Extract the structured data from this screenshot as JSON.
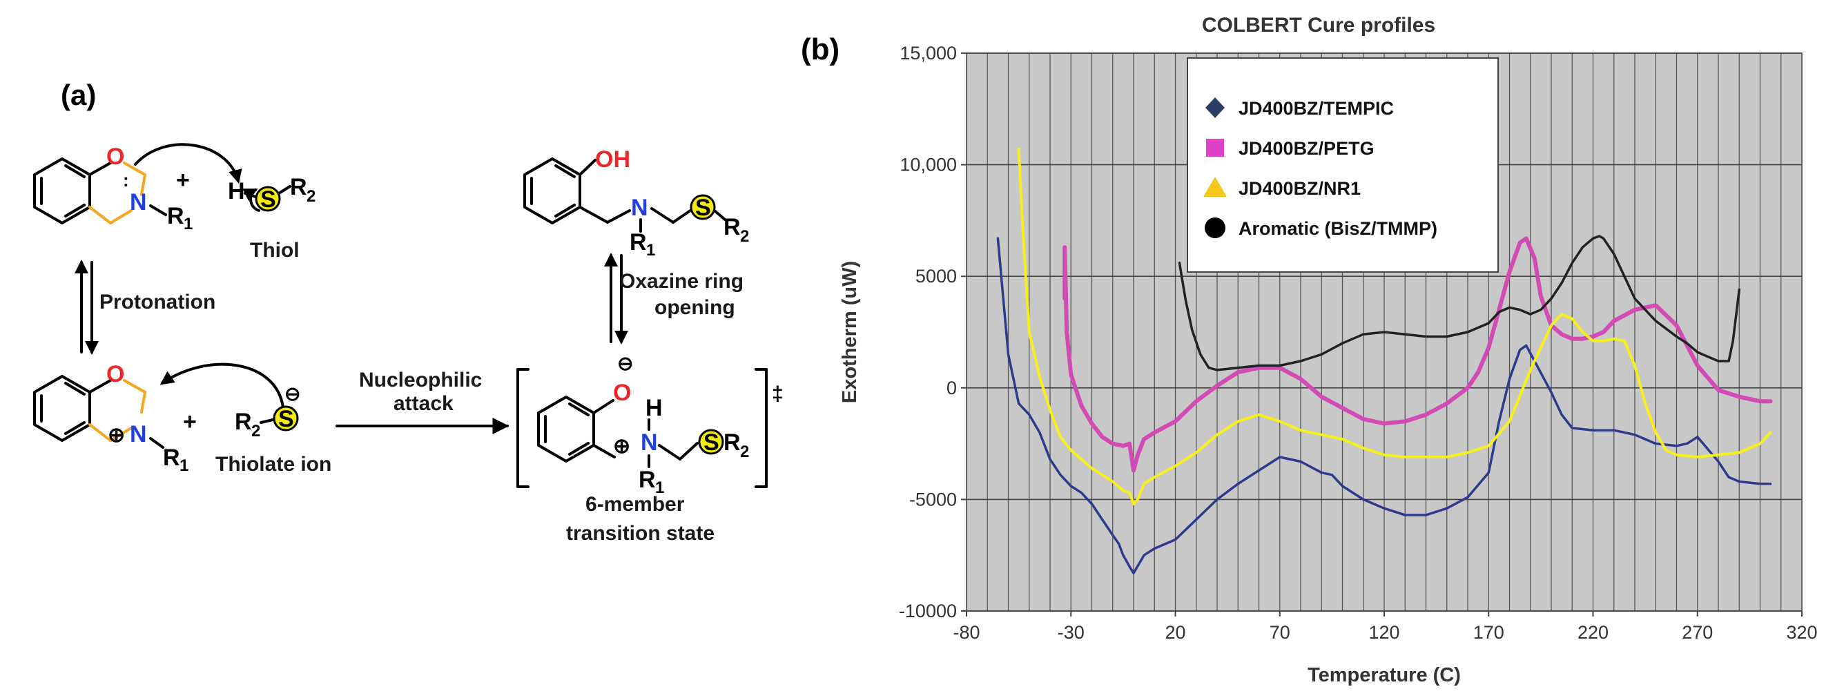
{
  "scheme": {
    "panel_label": "(a)",
    "atoms": {
      "O": "O",
      "N": "N",
      "S": "S",
      "H": "H",
      "OH": "OH",
      "R1": "R",
      "R2": "R",
      "one": "1",
      "two": "2",
      "plus": "+",
      "minus": "⊖",
      "cation": "⊕",
      "dagger": "‡"
    },
    "thiol_label": "Thiol",
    "protonation_label": "Protonation",
    "thiolate_label": "Thiolate ion",
    "nucleophilic_line1": "Nucleophilic",
    "nucleophilic_line2": "attack",
    "ring_open_line1": "Oxazine ring",
    "ring_open_line2": "opening",
    "ts_line1": "6-member",
    "ts_line2": "transition state"
  },
  "chart_panel_label": "(b)",
  "chart_data": {
    "type": "line",
    "title": "COLBERT Cure profiles",
    "xlabel": "Temperature (C)",
    "ylabel": "Exotherm (uW)",
    "xlim": [
      -80,
      320
    ],
    "ylim": [
      -10000,
      15000
    ],
    "xticks": [
      -80,
      -30,
      20,
      70,
      120,
      170,
      220,
      270,
      320
    ],
    "xtick_labels": [
      "-80",
      "-30",
      "20",
      "70",
      "120",
      "170",
      "220",
      "270",
      "320"
    ],
    "yticks": [
      -10000,
      -5000,
      0,
      5000,
      10000,
      15000
    ],
    "ytick_labels": [
      "-10000",
      "-5000",
      "0",
      "5000",
      "10,000",
      "15,000"
    ],
    "grid": true,
    "legend_position": "top-center",
    "series": [
      {
        "name": "JD400BZ/TEMPIC",
        "color": "#2e3a8c",
        "marker": "diamond",
        "marker_color": "#2c3e66",
        "x": [
          -65,
          -60,
          -55,
          -50,
          -45,
          -40,
          -35,
          -30,
          -25,
          -20,
          -15,
          -10,
          -7,
          -5,
          -2,
          0,
          5,
          10,
          20,
          30,
          40,
          50,
          60,
          70,
          80,
          90,
          95,
          100,
          110,
          120,
          130,
          140,
          150,
          160,
          170,
          175,
          180,
          185,
          188,
          192,
          200,
          205,
          210,
          220,
          230,
          240,
          250,
          260,
          265,
          270,
          280,
          285,
          290,
          300,
          305
        ],
        "y": [
          6700,
          1500,
          -700,
          -1200,
          -2000,
          -3200,
          -3900,
          -4400,
          -4700,
          -5200,
          -5900,
          -6600,
          -7000,
          -7500,
          -8000,
          -8300,
          -7500,
          -7200,
          -6800,
          -5900,
          -5000,
          -4300,
          -3700,
          -3100,
          -3300,
          -3800,
          -3900,
          -4400,
          -5000,
          -5400,
          -5700,
          -5700,
          -5400,
          -4900,
          -3800,
          -1500,
          400,
          1700,
          1900,
          1200,
          -200,
          -1200,
          -1800,
          -1900,
          -1900,
          -2100,
          -2500,
          -2600,
          -2500,
          -2200,
          -3300,
          -4000,
          -4200,
          -4300,
          -4300
        ]
      },
      {
        "name": "JD400BZ/PETG",
        "color": "#d24ab4",
        "marker": "square",
        "marker_color": "#e040c8",
        "x": [
          -33,
          -33,
          -32,
          -30,
          -25,
          -20,
          -15,
          -10,
          -5,
          -2,
          0,
          2,
          5,
          10,
          20,
          30,
          40,
          50,
          60,
          70,
          80,
          90,
          100,
          110,
          120,
          130,
          140,
          150,
          160,
          165,
          170,
          175,
          180,
          185,
          188,
          192,
          195,
          200,
          205,
          210,
          215,
          220,
          225,
          230,
          240,
          250,
          260,
          270,
          280,
          290,
          300,
          305
        ],
        "y": [
          4000,
          6300,
          2500,
          600,
          -800,
          -1600,
          -2200,
          -2500,
          -2600,
          -2500,
          -3700,
          -3000,
          -2300,
          -2000,
          -1500,
          -600,
          100,
          700,
          900,
          900,
          400,
          -400,
          -900,
          -1400,
          -1600,
          -1500,
          -1200,
          -700,
          0,
          700,
          1800,
          3500,
          5200,
          6500,
          6700,
          5800,
          4100,
          2800,
          2400,
          2200,
          2200,
          2300,
          2500,
          3000,
          3500,
          3700,
          2800,
          1000,
          -100,
          -400,
          -600,
          -600
        ]
      },
      {
        "name": "JD400BZ/NR1",
        "color": "#f6ef1e",
        "marker": "triangle",
        "marker_color": "#f6c71a",
        "x": [
          -55,
          -53,
          -50,
          -45,
          -40,
          -35,
          -30,
          -20,
          -10,
          -5,
          -2,
          0,
          2,
          5,
          10,
          20,
          30,
          40,
          50,
          60,
          70,
          80,
          90,
          100,
          110,
          120,
          130,
          140,
          150,
          160,
          170,
          180,
          190,
          200,
          205,
          210,
          215,
          220,
          225,
          230,
          235,
          240,
          245,
          250,
          255,
          260,
          270,
          280,
          290,
          300,
          305
        ],
        "y": [
          10700,
          7000,
          2500,
          500,
          -1000,
          -2200,
          -2800,
          -3600,
          -4200,
          -4600,
          -4700,
          -5200,
          -5000,
          -4300,
          -4000,
          -3500,
          -2900,
          -2100,
          -1500,
          -1200,
          -1500,
          -1900,
          -2100,
          -2300,
          -2700,
          -3000,
          -3100,
          -3100,
          -3100,
          -2900,
          -2600,
          -1500,
          800,
          2800,
          3300,
          3100,
          2500,
          2100,
          2100,
          2200,
          2100,
          1000,
          -700,
          -2000,
          -2800,
          -3000,
          -3100,
          -3000,
          -2900,
          -2500,
          -2000
        ]
      },
      {
        "name": "Aromatic (BisZ/TMMP)",
        "color": "#222222",
        "marker": "circle",
        "marker_color": "#000000",
        "x": [
          22,
          23,
          25,
          28,
          32,
          36,
          40,
          50,
          60,
          70,
          80,
          90,
          100,
          110,
          120,
          130,
          140,
          150,
          160,
          170,
          175,
          180,
          185,
          190,
          195,
          200,
          205,
          210,
          215,
          220,
          223,
          225,
          230,
          240,
          250,
          260,
          265,
          270,
          275,
          280,
          285,
          287,
          290
        ],
        "y": [
          5600,
          5000,
          3900,
          2600,
          1500,
          900,
          800,
          900,
          1000,
          1000,
          1200,
          1500,
          2000,
          2400,
          2500,
          2400,
          2300,
          2300,
          2500,
          2900,
          3400,
          3600,
          3500,
          3300,
          3500,
          4000,
          4700,
          5600,
          6300,
          6700,
          6800,
          6700,
          6000,
          4000,
          3000,
          2300,
          2000,
          1600,
          1400,
          1200,
          1200,
          2100,
          4400
        ]
      }
    ]
  }
}
